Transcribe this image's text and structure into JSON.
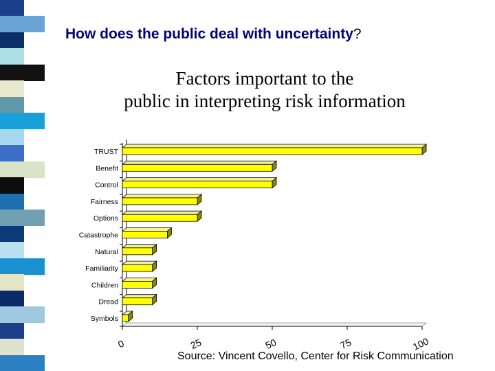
{
  "header": {
    "heading": "How does the public deal with uncertainty",
    "heading_mark": "?",
    "slide_title_line1": "Factors important to the",
    "slide_title_line2": "public in interpreting risk information"
  },
  "source_note": "Source:  Vincent Covello, Center for Risk Communication",
  "stripe_colors": [
    "#1b3f8b",
    "#6aa5d8",
    "#0a2f6b",
    "#aee0e8",
    "#111111",
    "#e8ead0",
    "#5f98a8",
    "#1aa0d8",
    "#a8d8f0",
    "#3a6ec8",
    "#d8e4c8",
    "#0d0d0d",
    "#1e6fb0",
    "#6f9fb0",
    "#0a3a7a",
    "#b8e0f0",
    "#1a90d0",
    "#e4e6c8",
    "#0d2a6a",
    "#a0c8e0",
    "#1b3f8b",
    "#e0e2d0",
    "#2a80c0"
  ],
  "colors": {
    "bar": "#ffff00",
    "bar_top": "#f2f2a0",
    "bar_side": "#8a8a00",
    "heading": "#000080"
  },
  "chart_data": {
    "type": "bar",
    "orientation": "horizontal",
    "categories": [
      "TRUST",
      "Benefit",
      "Control",
      "Fairness",
      "Options",
      "Catastrophe",
      "Natural",
      "Familiarity",
      "Children",
      "Dread",
      "Symbols"
    ],
    "values": [
      100,
      50,
      50,
      25,
      25,
      15,
      10,
      10,
      10,
      10,
      2
    ],
    "xlim": [
      0,
      100
    ],
    "x_ticks": [
      0,
      25,
      50,
      75,
      100
    ],
    "x_tick_labels": [
      "0",
      "25",
      "50",
      "75",
      "100"
    ],
    "grid": false,
    "three_d": true
  }
}
